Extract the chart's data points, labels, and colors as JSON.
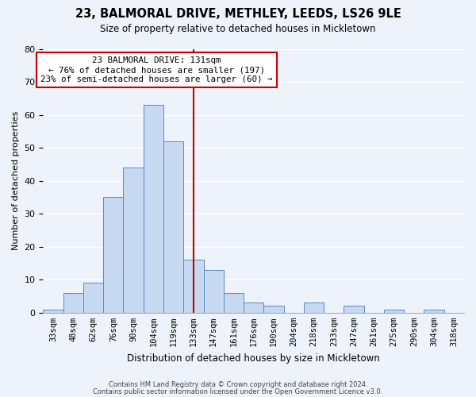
{
  "title": "23, BALMORAL DRIVE, METHLEY, LEEDS, LS26 9LE",
  "subtitle": "Size of property relative to detached houses in Mickletown",
  "xlabel": "Distribution of detached houses by size in Mickletown",
  "ylabel": "Number of detached properties",
  "bin_labels": [
    "33sqm",
    "48sqm",
    "62sqm",
    "76sqm",
    "90sqm",
    "104sqm",
    "119sqm",
    "133sqm",
    "147sqm",
    "161sqm",
    "176sqm",
    "190sqm",
    "204sqm",
    "218sqm",
    "233sqm",
    "247sqm",
    "261sqm",
    "275sqm",
    "290sqm",
    "304sqm",
    "318sqm"
  ],
  "bar_values": [
    1,
    6,
    9,
    35,
    44,
    63,
    52,
    16,
    13,
    6,
    3,
    2,
    0,
    3,
    0,
    2,
    0,
    1,
    0,
    1,
    0
  ],
  "bar_color": "#c6d9f1",
  "bar_edge_color": "#5a8ac6",
  "vline_x_index": 7,
  "vline_color": "#cc0000",
  "ylim": [
    0,
    80
  ],
  "yticks": [
    0,
    10,
    20,
    30,
    40,
    50,
    60,
    70,
    80
  ],
  "annotation_title": "23 BALMORAL DRIVE: 131sqm",
  "annotation_line1": "← 76% of detached houses are smaller (197)",
  "annotation_line2": "23% of semi-detached houses are larger (60) →",
  "footer1": "Contains HM Land Registry data © Crown copyright and database right 2024.",
  "footer2": "Contains public sector information licensed under the Open Government Licence v3.0.",
  "bg_color": "#eef2fb"
}
